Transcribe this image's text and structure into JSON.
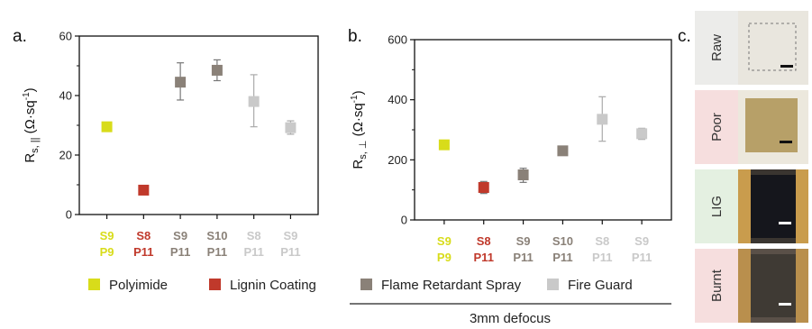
{
  "figure": {
    "panel_a_letter": "a.",
    "panel_b_letter": "b.",
    "panel_c_letter": "c.",
    "defocus_note": "3mm defocus"
  },
  "colors": {
    "polyimide": "#d8dc1a",
    "lignin": "#c0392b",
    "flame": "#8a8178",
    "fire": "#c9c9c9",
    "axis": "#111111"
  },
  "legend": [
    {
      "label": "Polyimide",
      "series": "polyimide"
    },
    {
      "label": "Lignin Coating",
      "series": "lignin"
    },
    {
      "label": "Flame Retardant Spray",
      "series": "flame"
    },
    {
      "label": "Fire Guard",
      "series": "fire"
    }
  ],
  "chart_data": [
    {
      "type": "scatter",
      "panel": "a",
      "ylabel_main": "R",
      "ylabel_sub": "s, ||",
      "ylabel_unit": " (Ω·sq",
      "ylabel_sup": "-1",
      "ylabel_end": ")",
      "ylim": [
        0,
        60
      ],
      "yticks": [
        "0",
        "20",
        "40",
        "60"
      ],
      "categories": [
        {
          "top": "S9",
          "bottom": "P9",
          "series": "polyimide"
        },
        {
          "top": "S8",
          "bottom": "P11",
          "series": "lignin"
        },
        {
          "top": "S9",
          "bottom": "P11",
          "series": "flame"
        },
        {
          "top": "S10",
          "bottom": "P11",
          "series": "flame"
        },
        {
          "top": "S8",
          "bottom": "P11",
          "series": "fire"
        },
        {
          "top": "S9",
          "bottom": "P11",
          "series": "fire"
        }
      ],
      "values": [
        29.5,
        8.2,
        44.5,
        48.5,
        38.0,
        29.2
      ],
      "err_low": [
        0,
        0,
        38.5,
        45.0,
        29.5,
        27.0
      ],
      "err_high": [
        0,
        0,
        51.0,
        52.0,
        47.0,
        31.5
      ]
    },
    {
      "type": "scatter",
      "panel": "b",
      "ylabel_main": "R",
      "ylabel_sub": "s, ⊥",
      "ylabel_unit": " (Ω·sq",
      "ylabel_sup": "-1",
      "ylabel_end": ")",
      "ylim": [
        0,
        600
      ],
      "yticks": [
        "0",
        "200",
        "400",
        "600"
      ],
      "categories": [
        {
          "top": "S9",
          "bottom": "P9",
          "series": "polyimide"
        },
        {
          "top": "S8",
          "bottom": "P11",
          "series": "lignin"
        },
        {
          "top": "S9",
          "bottom": "P11",
          "series": "flame"
        },
        {
          "top": "S10",
          "bottom": "P11",
          "series": "flame"
        },
        {
          "top": "S8",
          "bottom": "P11",
          "series": "fire"
        },
        {
          "top": "S9",
          "bottom": "P11",
          "series": "fire"
        }
      ],
      "values": [
        250,
        108,
        150,
        230,
        335,
        287
      ],
      "err_low": [
        240,
        88,
        125,
        218,
        262,
        268
      ],
      "err_high": [
        262,
        128,
        172,
        242,
        410,
        305
      ]
    }
  ],
  "photos": [
    {
      "label": "Raw",
      "kind": "raw"
    },
    {
      "label": "Poor",
      "kind": "poor"
    },
    {
      "label": "LIG",
      "kind": "lig"
    },
    {
      "label": "Burnt",
      "kind": "burnt"
    }
  ]
}
